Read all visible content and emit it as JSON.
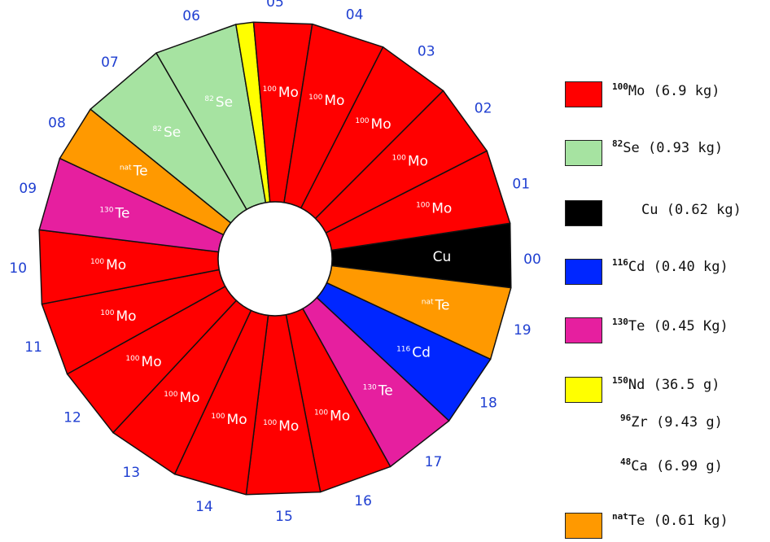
{
  "colors": {
    "Mo": "#ff0000",
    "Se": "#a6e3a1",
    "Cu": "#000000",
    "Cd": "#0026ff",
    "Te130": "#e61f9f",
    "Nd": "#ffff00",
    "TeNat": "#ff9900",
    "number": "#1f3fd1",
    "outline": "#111111"
  },
  "wheel": {
    "sectors": [
      {
        "id": "00",
        "start": -8.6,
        "end": 7.0,
        "color": "Cu",
        "iso": "",
        "el": "Cu",
        "label": true
      },
      {
        "id": "19",
        "start": 7.0,
        "end": 25.0,
        "color": "TeNat",
        "iso": "nat",
        "el": "Te",
        "label": true
      },
      {
        "id": "18",
        "start": 25.0,
        "end": 43.0,
        "color": "Cd",
        "iso": "116",
        "el": "Cd",
        "label": true
      },
      {
        "id": "17",
        "start": 43.0,
        "end": 61.0,
        "color": "Te130",
        "iso": "130",
        "el": "Te",
        "label": true
      },
      {
        "id": "16",
        "start": 61.0,
        "end": 79.0,
        "color": "Mo",
        "iso": "100",
        "el": "Mo",
        "label": true
      },
      {
        "id": "15",
        "start": 79.0,
        "end": 97.0,
        "color": "Mo",
        "iso": "100",
        "el": "Mo",
        "label": true
      },
      {
        "id": "14",
        "start": 97.0,
        "end": 115.0,
        "color": "Mo",
        "iso": "100",
        "el": "Mo",
        "label": true
      },
      {
        "id": "13",
        "start": 115.0,
        "end": 133.0,
        "color": "Mo",
        "iso": "100",
        "el": "Mo",
        "label": true
      },
      {
        "id": "12",
        "start": 133.0,
        "end": 151.0,
        "color": "Mo",
        "iso": "100",
        "el": "Mo",
        "label": true
      },
      {
        "id": "11",
        "start": 151.0,
        "end": 169.0,
        "color": "Mo",
        "iso": "100",
        "el": "Mo",
        "label": true
      },
      {
        "id": "10",
        "start": 169.0,
        "end": 187.0,
        "color": "Mo",
        "iso": "100",
        "el": "Mo",
        "label": true
      },
      {
        "id": "09",
        "start": 187.0,
        "end": 205.0,
        "color": "Te130",
        "iso": "130",
        "el": "Te",
        "label": true
      },
      {
        "id": "08",
        "start": 205.0,
        "end": 219.0,
        "color": "TeNat",
        "iso": "nat",
        "el": "Te",
        "label": true
      },
      {
        "id": "07",
        "start": 219.0,
        "end": 240.0,
        "color": "Se",
        "iso": "82",
        "el": "Se",
        "label": true
      },
      {
        "id": "06",
        "start": 240.0,
        "end": 260.5,
        "color": "Se",
        "iso": "82",
        "el": "Se",
        "label": true
      },
      {
        "id": "05a",
        "start": 260.5,
        "end": 264.8,
        "color": "Nd",
        "iso": "",
        "el": "",
        "label": false
      },
      {
        "id": "05",
        "start": 264.8,
        "end": 279.0,
        "color": "Mo",
        "iso": "100",
        "el": "Mo",
        "label": true
      },
      {
        "id": "04",
        "start": 279.0,
        "end": 297.0,
        "color": "Mo",
        "iso": "100",
        "el": "Mo",
        "label": true
      },
      {
        "id": "03",
        "start": 297.0,
        "end": 315.0,
        "color": "Mo",
        "iso": "100",
        "el": "Mo",
        "label": true
      },
      {
        "id": "02",
        "start": 315.0,
        "end": 333.0,
        "color": "Mo",
        "iso": "100",
        "el": "Mo",
        "label": true
      },
      {
        "id": "01",
        "start": 333.0,
        "end": 351.4,
        "color": "Mo",
        "iso": "100",
        "el": "Mo",
        "label": true
      }
    ],
    "numbers": [
      {
        "text": "00",
        "angle": 0
      },
      {
        "text": "01",
        "angle": 343
      },
      {
        "text": "02",
        "angle": 324
      },
      {
        "text": "03",
        "angle": 306
      },
      {
        "text": "04",
        "angle": 288
      },
      {
        "text": "05",
        "angle": 270
      },
      {
        "text": "06",
        "angle": 251
      },
      {
        "text": "07",
        "angle": 230
      },
      {
        "text": "08",
        "angle": 212
      },
      {
        "text": "09",
        "angle": 196
      },
      {
        "text": "10",
        "angle": 178
      },
      {
        "text": "11",
        "angle": 160
      },
      {
        "text": "12",
        "angle": 142
      },
      {
        "text": "13",
        "angle": 124
      },
      {
        "text": "14",
        "angle": 106
      },
      {
        "text": "15",
        "angle": 88
      },
      {
        "text": "16",
        "angle": 70
      },
      {
        "text": "17",
        "angle": 52
      },
      {
        "text": "18",
        "angle": 34
      },
      {
        "text": "19",
        "angle": 16
      }
    ]
  },
  "legend": [
    {
      "key": "Mo",
      "swatch": "Mo",
      "iso": "100",
      "text": "Mo (6.9 kg)"
    },
    {
      "key": "Se",
      "swatch": "Se",
      "iso": "82",
      "text": "Se (0.93 kg)"
    },
    {
      "key": "Cu",
      "swatch": "Cu",
      "iso": "",
      "text": "Cu (0.62 kg)"
    },
    {
      "key": "Cd",
      "swatch": "Cd",
      "iso": "116",
      "text": "Cd (0.40 kg)"
    },
    {
      "key": "Te130",
      "swatch": "Te130",
      "iso": "130",
      "text": "Te (0.45 Kg)"
    },
    {
      "key": "Nd",
      "swatch": "Nd",
      "iso": "150",
      "text": "Nd (36.5 g)"
    },
    {
      "key": "Zr",
      "swatch": "",
      "iso": "96",
      "text": "Zr (9.43 g)"
    },
    {
      "key": "Ca",
      "swatch": "",
      "iso": "48",
      "text": "Ca (6.99 g)"
    },
    {
      "key": "TeNat",
      "swatch": "TeNat",
      "iso": "nat",
      "text": "Te (0.61 kg)"
    }
  ]
}
